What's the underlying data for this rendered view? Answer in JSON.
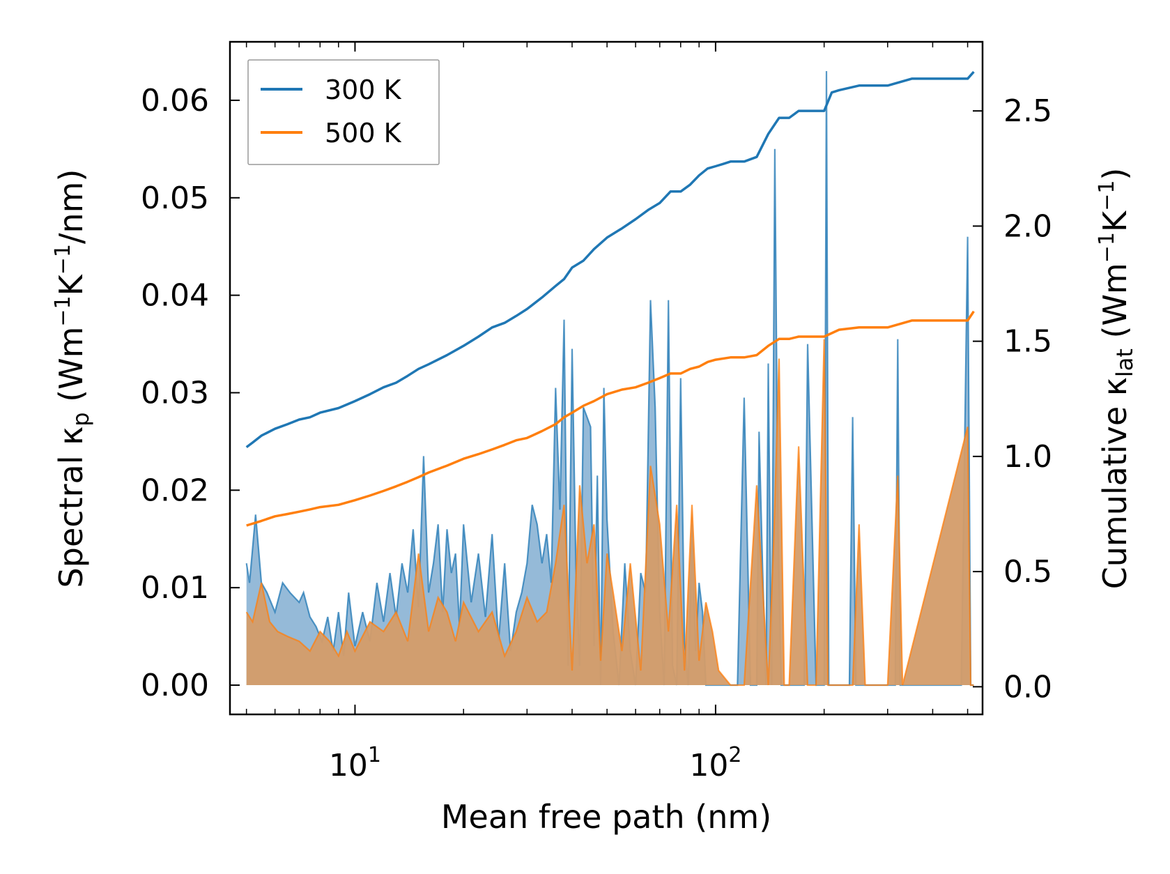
{
  "chart_data": {
    "type": "line",
    "xscale": "log",
    "xlabel": "Mean free path (nm)",
    "ylabel_left": {
      "text": "Spectral κ",
      "sub": "p",
      "units_pre": " (Wm",
      "sup1": "−1",
      "mid": "K",
      "sup2": "−1",
      "post": "/nm)"
    },
    "ylabel_right": {
      "text": "Cumulative κ",
      "sub": "lat",
      "units_pre": " (Wm",
      "sup1": "−1",
      "mid": "K",
      "sup2": "−1",
      "post": ")"
    },
    "xlim": [
      4.5,
      550
    ],
    "ylim_left": [
      -0.003,
      0.066
    ],
    "ylim_right": [
      -0.12,
      2.8
    ],
    "xticks": [
      {
        "value": 10,
        "base": "10",
        "exp": "1"
      },
      {
        "value": 100,
        "base": "10",
        "exp": "2"
      }
    ],
    "yticks_left": [
      "0.00",
      "0.01",
      "0.02",
      "0.03",
      "0.04",
      "0.05",
      "0.06"
    ],
    "yticks_right": [
      "0.0",
      "0.5",
      "1.0",
      "1.5",
      "2.0",
      "2.5"
    ],
    "legend": {
      "placement": "top-left",
      "entries": [
        "300 K",
        "500 K"
      ]
    },
    "colors": {
      "s300": "#1f77b4",
      "s500": "#ff7f0e",
      "fill300": "#8fb6d6",
      "fill500": "#d49c69"
    },
    "series": [
      {
        "name": "300 K",
        "axis": "right",
        "kind": "cumulative",
        "x": [
          5,
          5.2,
          5.5,
          6,
          6.5,
          7,
          7.5,
          8,
          9,
          10,
          11,
          12,
          13,
          14,
          15,
          16,
          18,
          20,
          22,
          24,
          26,
          28,
          30,
          33,
          36,
          38,
          40,
          43,
          46,
          50,
          55,
          60,
          65,
          70,
          75,
          80,
          85,
          90,
          95,
          100,
          105,
          110,
          115,
          120,
          130,
          140,
          150,
          160,
          170,
          180,
          190,
          200,
          210,
          220,
          250,
          300,
          350,
          400,
          500,
          520
        ],
        "y": [
          1.04,
          1.06,
          1.09,
          1.12,
          1.14,
          1.16,
          1.17,
          1.19,
          1.21,
          1.24,
          1.27,
          1.3,
          1.32,
          1.35,
          1.38,
          1.4,
          1.44,
          1.48,
          1.52,
          1.56,
          1.58,
          1.61,
          1.64,
          1.69,
          1.74,
          1.77,
          1.82,
          1.85,
          1.9,
          1.95,
          1.99,
          2.03,
          2.07,
          2.1,
          2.15,
          2.15,
          2.18,
          2.22,
          2.25,
          2.26,
          2.27,
          2.28,
          2.28,
          2.28,
          2.3,
          2.4,
          2.47,
          2.47,
          2.5,
          2.5,
          2.5,
          2.5,
          2.58,
          2.59,
          2.61,
          2.61,
          2.64,
          2.64,
          2.64,
          2.67
        ]
      },
      {
        "name": "500 K",
        "axis": "right",
        "kind": "cumulative",
        "x": [
          5,
          5.5,
          6,
          6.5,
          7,
          7.5,
          8,
          9,
          10,
          11,
          12,
          13,
          14,
          15,
          16,
          18,
          20,
          22,
          24,
          26,
          28,
          30,
          33,
          36,
          38,
          40,
          43,
          46,
          50,
          55,
          60,
          65,
          70,
          75,
          80,
          85,
          90,
          95,
          100,
          110,
          120,
          130,
          140,
          150,
          160,
          170,
          180,
          200,
          220,
          250,
          300,
          350,
          400,
          500,
          520
        ],
        "y": [
          0.7,
          0.72,
          0.74,
          0.75,
          0.76,
          0.77,
          0.78,
          0.79,
          0.81,
          0.83,
          0.85,
          0.87,
          0.89,
          0.91,
          0.93,
          0.96,
          0.99,
          1.01,
          1.03,
          1.05,
          1.07,
          1.08,
          1.11,
          1.14,
          1.17,
          1.19,
          1.22,
          1.24,
          1.27,
          1.29,
          1.3,
          1.32,
          1.34,
          1.36,
          1.36,
          1.38,
          1.39,
          1.41,
          1.42,
          1.43,
          1.43,
          1.44,
          1.48,
          1.51,
          1.51,
          1.52,
          1.52,
          1.52,
          1.55,
          1.56,
          1.56,
          1.59,
          1.59,
          1.59,
          1.63
        ]
      },
      {
        "name": "300 K spectral",
        "axis": "left",
        "kind": "spectral",
        "x": [
          5,
          5.1,
          5.3,
          5.5,
          5.7,
          6,
          6.3,
          6.6,
          7,
          7.2,
          7.5,
          7.8,
          8.1,
          8.4,
          8.7,
          9,
          9.3,
          9.6,
          10,
          10.5,
          11,
          11.5,
          12,
          12.5,
          13,
          13.5,
          14,
          14.5,
          15,
          15.5,
          16,
          16.5,
          17,
          17.5,
          18,
          18.5,
          19,
          19.5,
          20,
          21,
          22,
          23,
          24,
          25,
          26,
          27,
          28,
          29,
          30,
          31,
          32,
          33,
          34,
          35,
          36,
          37,
          38,
          39,
          40,
          41,
          42,
          43,
          44,
          45,
          46,
          47,
          48,
          49,
          50,
          52,
          54,
          56,
          58,
          60,
          62,
          64,
          66,
          68,
          70,
          72,
          74,
          76,
          78,
          80,
          82,
          84,
          86,
          88,
          90,
          92,
          94,
          96,
          98,
          100,
          102,
          104,
          106,
          108,
          110,
          115,
          120,
          125,
          128,
          130,
          132,
          135,
          138,
          140,
          143,
          146,
          149,
          152,
          155,
          158,
          162,
          166,
          170,
          173,
          176,
          180,
          190,
          200,
          203,
          206,
          209,
          212,
          215,
          220,
          225,
          230,
          235,
          240,
          245,
          250,
          300,
          315,
          320,
          325,
          330,
          400,
          480,
          500,
          510,
          515,
          520
        ],
        "y": [
          0.0125,
          0.0105,
          0.0175,
          0.0105,
          0.0095,
          0.0075,
          0.0105,
          0.0095,
          0.0085,
          0.0095,
          0.007,
          0.006,
          0.0045,
          0.007,
          0.0035,
          0.0075,
          0.003,
          0.0095,
          0.004,
          0.0075,
          0.0045,
          0.0105,
          0.0065,
          0.0115,
          0.007,
          0.0125,
          0.0095,
          0.016,
          0.008,
          0.0235,
          0.0095,
          0.0125,
          0.0165,
          0.0075,
          0.016,
          0.0115,
          0.0135,
          0.006,
          0.0165,
          0.0085,
          0.0135,
          0.007,
          0.0155,
          0.0045,
          0.0125,
          0.0035,
          0.0075,
          0.0095,
          0.0125,
          0.0185,
          0.0165,
          0.0125,
          0.0155,
          0.0105,
          0.0305,
          0.018,
          0.0375,
          0.002,
          0.0345,
          0.012,
          0.002,
          0.0285,
          0.0275,
          0.0265,
          0.004,
          0.0215,
          0.0,
          0.0305,
          0.017,
          0.0055,
          0.0,
          0.0125,
          0.0035,
          0.0,
          0.0115,
          0.0095,
          0.0395,
          0.0285,
          0.0075,
          0.0,
          0.0395,
          0.002,
          0.0,
          0.0315,
          0.0045,
          0.0,
          0.0165,
          0.0035,
          0.0105,
          0.0075,
          0.0,
          0.0,
          0.0,
          0.0,
          0.0,
          0.0,
          0.0,
          0.0,
          0.0,
          0.0,
          0.0295,
          0.0,
          0.0,
          0.0,
          0.026,
          0.012,
          0.0,
          0.033,
          0.0,
          0.055,
          0.016,
          0.0,
          0.0,
          0.0,
          0.0,
          0.0,
          0.0,
          0.0,
          0.0,
          0.035,
          0.0,
          0.0,
          0.063,
          0.0,
          0.0,
          0.0,
          0.0,
          0.0,
          0.0,
          0.0,
          0.0,
          0.0275,
          0.0,
          0.0,
          0.0,
          0.0,
          0.0355,
          0.0,
          0.0,
          0.0,
          0.0,
          0.046,
          0.0,
          0.0,
          0.0
        ]
      },
      {
        "name": "500 K spectral",
        "axis": "left",
        "kind": "spectral",
        "x": [
          5,
          5.2,
          5.5,
          5.8,
          6.1,
          6.5,
          7,
          7.5,
          8,
          8.5,
          9,
          9.5,
          10,
          11,
          12,
          13,
          14,
          15,
          16,
          17,
          18,
          19,
          20,
          22,
          24,
          26,
          28,
          30,
          32,
          34,
          36,
          38,
          40,
          42,
          44,
          46,
          48,
          50,
          52,
          55,
          58,
          62,
          66,
          70,
          74,
          78,
          82,
          86,
          90,
          94,
          98,
          102,
          110,
          120,
          130,
          140,
          145,
          150,
          155,
          160,
          170,
          180,
          190,
          200,
          205,
          210,
          215,
          220,
          230,
          240,
          250,
          260,
          300,
          320,
          330,
          500,
          510,
          520
        ],
        "y": [
          0.0075,
          0.0065,
          0.0105,
          0.0065,
          0.0055,
          0.005,
          0.0045,
          0.0035,
          0.0055,
          0.0045,
          0.003,
          0.0055,
          0.0035,
          0.0065,
          0.0055,
          0.0075,
          0.0045,
          0.0135,
          0.0055,
          0.009,
          0.0075,
          0.0045,
          0.0085,
          0.0055,
          0.0075,
          0.003,
          0.0055,
          0.009,
          0.0065,
          0.0075,
          0.0125,
          0.0185,
          0.0015,
          0.0205,
          0.0125,
          0.0165,
          0.0025,
          0.0135,
          0.0095,
          0.0035,
          0.0125,
          0.0015,
          0.0225,
          0.0165,
          0.0055,
          0.0185,
          0.0015,
          0.0185,
          0.0025,
          0.0085,
          0.0055,
          0.0015,
          0.0,
          0.0,
          0.0205,
          0.0,
          0.015,
          0.0335,
          0.0,
          0.0,
          0.0245,
          0.0,
          0.0,
          0.0355,
          0.0,
          0.0,
          0.0,
          0.0,
          0.0,
          0.0,
          0.0165,
          0.0,
          0.0,
          0.0215,
          0.0,
          0.0265,
          0.0,
          0.0
        ]
      }
    ]
  }
}
